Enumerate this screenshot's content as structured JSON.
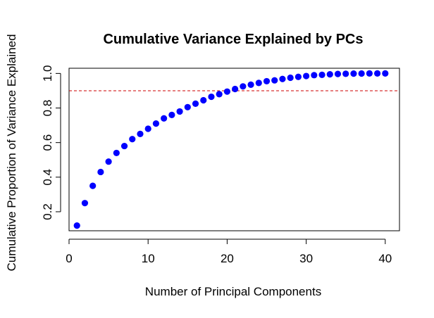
{
  "chart_data": {
    "type": "scatter",
    "title": "Cumulative Variance Explained by PCs",
    "xlabel": "Number of Principal Components",
    "ylabel": "Cumulative Proportion of Variance Explained",
    "xlim": [
      0,
      41.8
    ],
    "ylim": [
      0.09,
      1.03
    ],
    "xticks": [
      "0",
      "10",
      "20",
      "30",
      "40"
    ],
    "yticks": [
      "0.2",
      "0.4",
      "0.6",
      "0.8",
      "1.0"
    ],
    "grid": false,
    "series": [
      {
        "color": "#0000ff",
        "x": [
          1,
          2,
          3,
          4,
          5,
          6,
          7,
          8,
          9,
          10,
          11,
          12,
          13,
          14,
          15,
          16,
          17,
          18,
          19,
          20,
          21,
          22,
          23,
          24,
          25,
          26,
          27,
          28,
          29,
          30,
          31,
          32,
          33,
          34,
          35,
          36,
          37,
          38,
          39,
          40
        ],
        "y": [
          0.12,
          0.25,
          0.35,
          0.43,
          0.49,
          0.54,
          0.58,
          0.62,
          0.65,
          0.68,
          0.71,
          0.74,
          0.76,
          0.78,
          0.805,
          0.825,
          0.845,
          0.865,
          0.88,
          0.895,
          0.91,
          0.925,
          0.935,
          0.945,
          0.955,
          0.96,
          0.968,
          0.975,
          0.98,
          0.985,
          0.99,
          0.992,
          0.995,
          0.997,
          0.998,
          0.999,
          0.9995,
          1.0,
          1.0,
          1.0
        ]
      }
    ],
    "reference_line": {
      "y": 0.9,
      "color": "#cc0000",
      "style": "dashed"
    }
  }
}
